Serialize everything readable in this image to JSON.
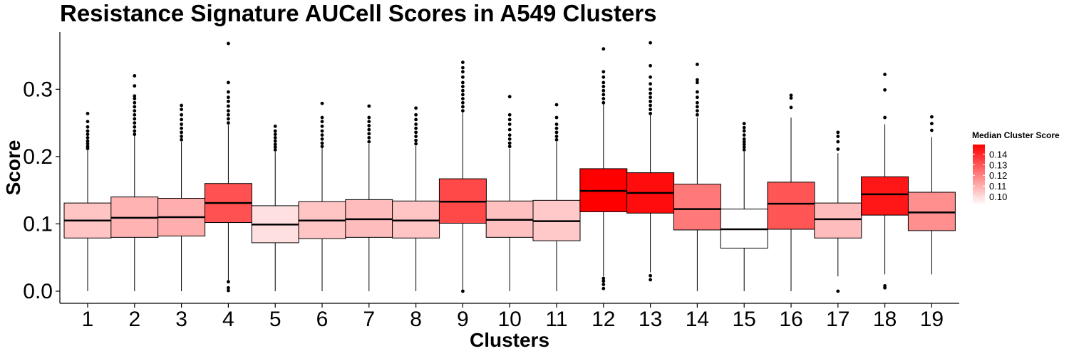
{
  "chart_data": {
    "type": "boxplot",
    "title": "Resistance Signature AUCell Scores in A549 Clusters",
    "xlabel": "Clusters",
    "ylabel": "Score",
    "ylim": [
      -0.018,
      0.385
    ],
    "yticks": [
      0.0,
      0.1,
      0.2,
      0.3
    ],
    "ytick_labels": [
      "0.0",
      "0.1",
      "0.2",
      "0.3"
    ],
    "categories": [
      "1",
      "2",
      "3",
      "4",
      "5",
      "6",
      "7",
      "8",
      "9",
      "10",
      "11",
      "12",
      "13",
      "14",
      "15",
      "16",
      "17",
      "18",
      "19"
    ],
    "boxes": [
      {
        "cluster": "1",
        "q1": 0.079,
        "median": 0.105,
        "q3": 0.131,
        "whisker_low": 0.0,
        "whisker_high": 0.211,
        "outliers_low": [],
        "outliers_high": [
          0.212,
          0.215,
          0.219,
          0.223,
          0.228,
          0.233,
          0.238,
          0.244,
          0.252,
          0.264
        ]
      },
      {
        "cluster": "2",
        "q1": 0.08,
        "median": 0.109,
        "q3": 0.14,
        "whisker_low": 0.0,
        "whisker_high": 0.231,
        "outliers_low": [],
        "outliers_high": [
          0.233,
          0.238,
          0.244,
          0.25,
          0.256,
          0.262,
          0.268,
          0.274,
          0.28,
          0.286,
          0.29,
          0.305,
          0.32
        ]
      },
      {
        "cluster": "3",
        "q1": 0.082,
        "median": 0.11,
        "q3": 0.138,
        "whisker_low": 0.0,
        "whisker_high": 0.222,
        "outliers_low": [],
        "outliers_high": [
          0.225,
          0.23,
          0.236,
          0.242,
          0.248,
          0.255,
          0.262,
          0.27,
          0.276
        ]
      },
      {
        "cluster": "4",
        "q1": 0.102,
        "median": 0.131,
        "q3": 0.16,
        "whisker_low": 0.015,
        "whisker_high": 0.247,
        "outliers_low": [
          0.001,
          0.005,
          0.014
        ],
        "outliers_high": [
          0.25,
          0.256,
          0.262,
          0.268,
          0.275,
          0.282,
          0.288,
          0.296,
          0.31,
          0.368
        ]
      },
      {
        "cluster": "5",
        "q1": 0.072,
        "median": 0.099,
        "q3": 0.127,
        "whisker_low": 0.0,
        "whisker_high": 0.207,
        "outliers_low": [],
        "outliers_high": [
          0.21,
          0.214,
          0.218,
          0.223,
          0.228,
          0.233,
          0.238,
          0.245
        ]
      },
      {
        "cluster": "6",
        "q1": 0.078,
        "median": 0.105,
        "q3": 0.133,
        "whisker_low": 0.0,
        "whisker_high": 0.213,
        "outliers_low": [],
        "outliers_high": [
          0.215,
          0.22,
          0.226,
          0.232,
          0.238,
          0.245,
          0.252,
          0.258,
          0.279
        ]
      },
      {
        "cluster": "7",
        "q1": 0.08,
        "median": 0.107,
        "q3": 0.136,
        "whisker_low": 0.0,
        "whisker_high": 0.219,
        "outliers_low": [],
        "outliers_high": [
          0.222,
          0.228,
          0.234,
          0.24,
          0.246,
          0.252,
          0.258,
          0.275
        ]
      },
      {
        "cluster": "8",
        "q1": 0.079,
        "median": 0.105,
        "q3": 0.134,
        "whisker_low": 0.0,
        "whisker_high": 0.216,
        "outliers_low": [],
        "outliers_high": [
          0.219,
          0.224,
          0.23,
          0.236,
          0.242,
          0.248,
          0.255,
          0.262,
          0.272
        ]
      },
      {
        "cluster": "9",
        "q1": 0.101,
        "median": 0.133,
        "q3": 0.167,
        "whisker_low": 0.0,
        "whisker_high": 0.265,
        "outliers_low": [
          0.0
        ],
        "outliers_high": [
          0.268,
          0.274,
          0.28,
          0.286,
          0.292,
          0.298,
          0.304,
          0.31,
          0.318,
          0.326,
          0.332,
          0.34
        ]
      },
      {
        "cluster": "10",
        "q1": 0.08,
        "median": 0.106,
        "q3": 0.134,
        "whisker_low": 0.0,
        "whisker_high": 0.212,
        "outliers_low": [],
        "outliers_high": [
          0.215,
          0.22,
          0.226,
          0.232,
          0.24,
          0.248,
          0.255,
          0.262,
          0.289
        ]
      },
      {
        "cluster": "11",
        "q1": 0.075,
        "median": 0.104,
        "q3": 0.135,
        "whisker_low": 0.0,
        "whisker_high": 0.222,
        "outliers_low": [],
        "outliers_high": [
          0.225,
          0.23,
          0.236,
          0.242,
          0.248,
          0.258,
          0.277
        ]
      },
      {
        "cluster": "12",
        "q1": 0.118,
        "median": 0.149,
        "q3": 0.182,
        "whisker_low": 0.022,
        "whisker_high": 0.278,
        "outliers_low": [
          0.004,
          0.01,
          0.015,
          0.019
        ],
        "outliers_high": [
          0.28,
          0.286,
          0.292,
          0.298,
          0.304,
          0.31,
          0.318,
          0.326,
          0.36
        ]
      },
      {
        "cluster": "13",
        "q1": 0.116,
        "median": 0.146,
        "q3": 0.176,
        "whisker_low": 0.028,
        "whisker_high": 0.262,
        "outliers_low": [
          0.017,
          0.023
        ],
        "outliers_high": [
          0.264,
          0.27,
          0.276,
          0.282,
          0.288,
          0.294,
          0.3,
          0.308,
          0.318,
          0.335,
          0.369
        ]
      },
      {
        "cluster": "14",
        "q1": 0.091,
        "median": 0.122,
        "q3": 0.159,
        "whisker_low": 0.0,
        "whisker_high": 0.258,
        "outliers_low": [],
        "outliers_high": [
          0.262,
          0.268,
          0.274,
          0.28,
          0.288,
          0.296,
          0.31,
          0.314,
          0.337
        ]
      },
      {
        "cluster": "15",
        "q1": 0.064,
        "median": 0.092,
        "q3": 0.122,
        "whisker_low": 0.0,
        "whisker_high": 0.207,
        "outliers_low": [],
        "outliers_high": [
          0.21,
          0.214,
          0.218,
          0.222,
          0.226,
          0.232,
          0.238,
          0.243,
          0.249
        ]
      },
      {
        "cluster": "16",
        "q1": 0.092,
        "median": 0.13,
        "q3": 0.162,
        "whisker_low": 0.0,
        "whisker_high": 0.258,
        "outliers_low": [],
        "outliers_high": [
          0.273,
          0.287,
          0.291
        ]
      },
      {
        "cluster": "17",
        "q1": 0.079,
        "median": 0.107,
        "q3": 0.131,
        "whisker_low": 0.022,
        "whisker_high": 0.205,
        "outliers_low": [
          0.0
        ],
        "outliers_high": [
          0.211,
          0.222,
          0.23,
          0.236
        ]
      },
      {
        "cluster": "18",
        "q1": 0.113,
        "median": 0.144,
        "q3": 0.17,
        "whisker_low": 0.025,
        "whisker_high": 0.248,
        "outliers_low": [
          0.005,
          0.008
        ],
        "outliers_high": [
          0.258,
          0.299,
          0.322
        ]
      },
      {
        "cluster": "19",
        "q1": 0.09,
        "median": 0.117,
        "q3": 0.147,
        "whisker_low": 0.025,
        "whisker_high": 0.229,
        "outliers_low": [],
        "outliers_high": [
          0.239,
          0.249,
          0.259
        ]
      }
    ],
    "color_metric": "Median Cluster Score",
    "color_scale": {
      "low_value": 0.092,
      "high_value": 0.149,
      "low_color": "#ffffff",
      "high_color": "#ff0000"
    },
    "legend": {
      "title": "Median Cluster Score",
      "labels": [
        "0.14",
        "0.13",
        "0.12",
        "0.11",
        "0.10"
      ],
      "values": [
        0.14,
        0.13,
        0.12,
        0.11,
        0.1
      ],
      "placement": "right"
    },
    "grid": false
  }
}
